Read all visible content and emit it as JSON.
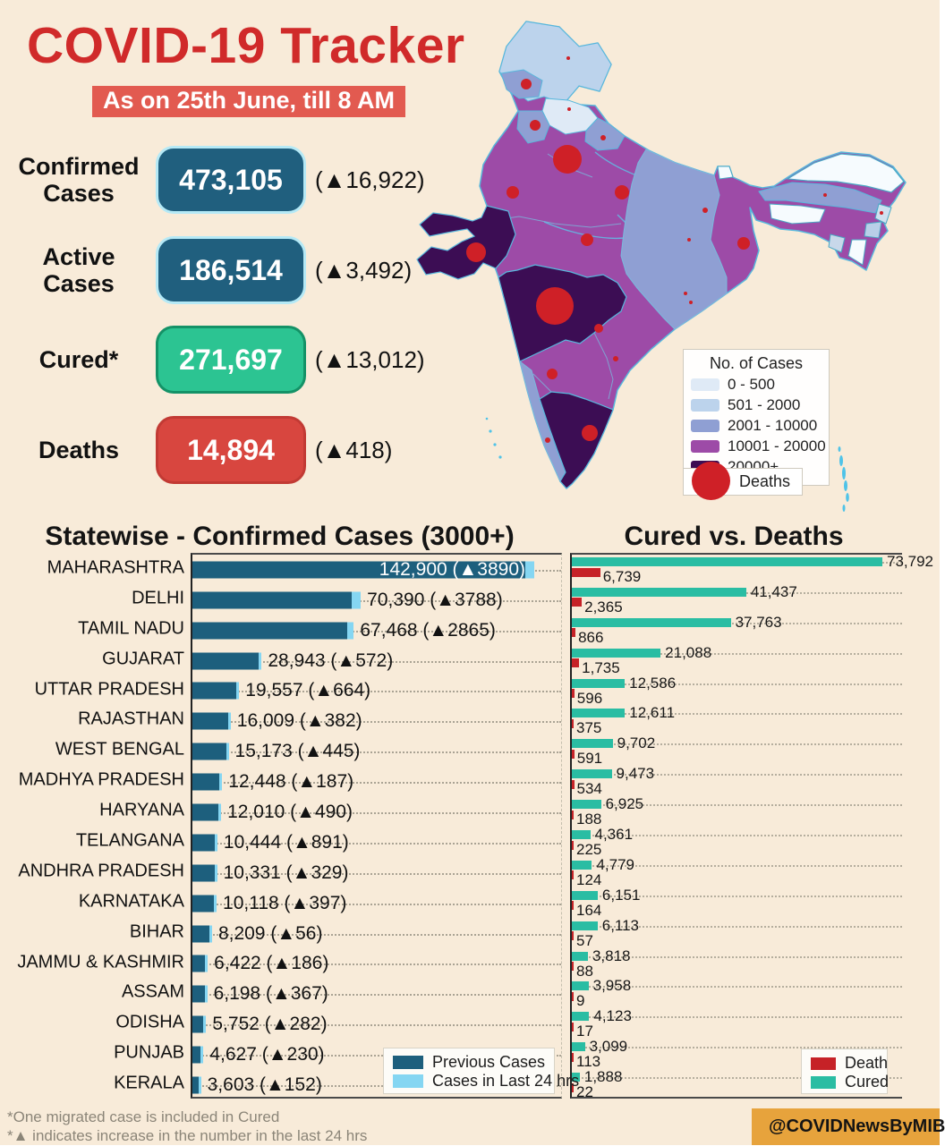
{
  "title": "COVID-19 Tracker",
  "date_badge": "As on 25th June, till 8 AM",
  "colors": {
    "background": "#f8ebd9",
    "title_red": "#d02a2a",
    "badge_bg": "#e25a50",
    "stat_teal": "#205f7e",
    "cured_green": "#2cc492",
    "death_red": "#d8463f",
    "bar_teal": "#1d5f7d",
    "bar_tip_blue": "#85d6f2",
    "cured_bar": "#2abda3",
    "death_bar": "#c62227",
    "twitter_bg": "#e7a33c",
    "twitter_blue": "#2da3e8"
  },
  "stats": [
    {
      "label": "Confirmed\nCases",
      "value": "473,105",
      "delta": "(▲16,922)",
      "fill": "#205f7e",
      "border": "#b5e9f6"
    },
    {
      "label": "Active\nCases",
      "value": "186,514",
      "delta": "(▲3,492)",
      "fill": "#205f7e",
      "border": "#b5e9f6"
    },
    {
      "label": "Cured*",
      "value": "271,697",
      "delta": "(▲13,012)",
      "fill": "#2cc492",
      "border": "#149267"
    },
    {
      "label": "Deaths",
      "value": "14,894",
      "delta": "(▲418)",
      "fill": "#d8463f",
      "border": "#c23a34"
    }
  ],
  "map": {
    "legend_title": "No. of Cases",
    "legend_items": [
      {
        "label": "0 - 500",
        "color": "#dfeaf6"
      },
      {
        "label": "501 - 2000",
        "color": "#bcd3ec"
      },
      {
        "label": "2001 - 10000",
        "color": "#8f9fd3"
      },
      {
        "label": "10001 - 20000",
        "color": "#9d4ba7"
      },
      {
        "label": "20000+",
        "color": "#3c0d54"
      }
    ],
    "deaths_label": "Deaths",
    "deaths_color": "#cf2027",
    "palette": {
      "p0": "#dfeaf6",
      "p1": "#bcd3ec",
      "p2": "#8f9fd3",
      "p3": "#9d4ba7",
      "p4": "#3c0d54",
      "white": "#f6fbfe",
      "manipur": "#b9cfe8",
      "nagaland": "#cfe0f0",
      "tripura": "#c8d8ea"
    },
    "death_markers": [
      {
        "x": 195,
        "y": 55,
        "r": 2
      },
      {
        "x": 148,
        "y": 84,
        "r": 6
      },
      {
        "x": 196,
        "y": 112,
        "r": 2
      },
      {
        "x": 158,
        "y": 130,
        "r": 6
      },
      {
        "x": 234,
        "y": 144,
        "r": 3
      },
      {
        "x": 194,
        "y": 168,
        "r": 16
      },
      {
        "x": 133,
        "y": 205,
        "r": 7
      },
      {
        "x": 255,
        "y": 205,
        "r": 8
      },
      {
        "x": 216,
        "y": 258,
        "r": 7
      },
      {
        "x": 92,
        "y": 272,
        "r": 11
      },
      {
        "x": 180,
        "y": 332,
        "r": 21
      },
      {
        "x": 348,
        "y": 225,
        "r": 3
      },
      {
        "x": 330,
        "y": 258,
        "r": 2
      },
      {
        "x": 326,
        "y": 318,
        "r": 2
      },
      {
        "x": 391,
        "y": 262,
        "r": 7
      },
      {
        "x": 332,
        "y": 328,
        "r": 2
      },
      {
        "x": 229,
        "y": 357,
        "r": 5
      },
      {
        "x": 248,
        "y": 391,
        "r": 3
      },
      {
        "x": 177,
        "y": 408,
        "r": 6
      },
      {
        "x": 172,
        "y": 482,
        "r": 3
      },
      {
        "x": 219,
        "y": 474,
        "r": 9
      },
      {
        "x": 482,
        "y": 208,
        "r": 2
      },
      {
        "x": 545,
        "y": 228,
        "r": 2
      }
    ]
  },
  "sections": {
    "left_title": "Statewise - Confirmed Cases (3000+)",
    "right_title": "Cured vs. Deaths"
  },
  "chart_data": [
    {
      "type": "bar",
      "orientation": "horizontal",
      "title": "Statewise - Confirmed Cases (3000+)",
      "legend_position": "bottom-right",
      "grid": "dotted",
      "xmax": 142900,
      "categories": [
        "MAHARASHTRA",
        "DELHI",
        "TAMIL NADU",
        "GUJARAT",
        "UTTAR PRADESH",
        "RAJASTHAN",
        "WEST BENGAL",
        "MADHYA PRADESH",
        "HARYANA",
        "TELANGANA",
        "ANDHRA PRADESH",
        "KARNATAKA",
        "BIHAR",
        "JAMMU & KASHMIR",
        "ASSAM",
        "ODISHA",
        "PUNJAB",
        "KERALA"
      ],
      "totals": [
        142900,
        70390,
        67468,
        28943,
        19557,
        16009,
        15173,
        12448,
        12010,
        10444,
        10331,
        10118,
        8209,
        6422,
        6198,
        5752,
        4627,
        3603
      ],
      "new_cases": [
        3890,
        3788,
        2865,
        572,
        664,
        382,
        445,
        187,
        490,
        891,
        329,
        397,
        56,
        186,
        367,
        282,
        230,
        152
      ],
      "labels": [
        "142,900 (▲3890)",
        "70,390 (▲3788)",
        "67,468 (▲2865)",
        "28,943 (▲572)",
        "19,557 (▲664)",
        "16,009 (▲382)",
        "15,173 (▲445)",
        "12,448 (▲187)",
        "12,010 (▲490)",
        "10,444 (▲891)",
        "10,331 (▲329)",
        "10,118 (▲397)",
        "8,209 (▲56)",
        "6,422 (▲186)",
        "6,198 (▲367)",
        "5,752 (▲282)",
        "4,627 (▲230)",
        "3,603 (▲152)"
      ],
      "series": [
        {
          "name": "Previous Cases",
          "color": "#1d5f7d"
        },
        {
          "name": "Cases in Last 24 hrs",
          "color": "#85d6f2"
        }
      ]
    },
    {
      "type": "bar",
      "orientation": "horizontal",
      "title": "Cured vs. Deaths",
      "legend_position": "bottom-right",
      "grid": "dotted",
      "xmax": 73792,
      "categories": [
        "MAHARASHTRA",
        "DELHI",
        "TAMIL NADU",
        "GUJARAT",
        "UTTAR PRADESH",
        "RAJASTHAN",
        "WEST BENGAL",
        "MADHYA PRADESH",
        "HARYANA",
        "TELANGANA",
        "ANDHRA PRADESH",
        "KARNATAKA",
        "BIHAR",
        "JAMMU & KASHMIR",
        "ASSAM",
        "ODISHA",
        "PUNJAB",
        "KERALA"
      ],
      "series": [
        {
          "name": "Cured",
          "color": "#2abda3",
          "values": [
            73792,
            41437,
            37763,
            21088,
            12586,
            12611,
            9702,
            9473,
            6925,
            4361,
            4779,
            6151,
            6113,
            3818,
            3958,
            4123,
            3099,
            1888
          ],
          "labels": [
            "73,792",
            "41,437",
            "37,763",
            "21,088",
            "12,586",
            "12,611",
            "9,702",
            "9,473",
            "6,925",
            "4,361",
            "4,779",
            "6,151",
            "6,113",
            "3,818",
            "3,958",
            "4,123",
            "3,099",
            "1,888"
          ]
        },
        {
          "name": "Death",
          "color": "#c62227",
          "values": [
            6739,
            2365,
            866,
            1735,
            596,
            375,
            591,
            534,
            188,
            225,
            124,
            164,
            57,
            88,
            9,
            17,
            113,
            22
          ],
          "labels": [
            "6,739",
            "2,365",
            "866",
            "1,735",
            "596",
            "375",
            "591",
            "534",
            "188",
            "225",
            "124",
            "164",
            "57",
            "88",
            "9",
            "17",
            "113",
            "22"
          ]
        }
      ]
    }
  ],
  "left_legend": [
    {
      "label": "Previous Cases",
      "color": "#1d5f7d"
    },
    {
      "label": "Cases in Last 24 hrs",
      "color": "#85d6f2"
    }
  ],
  "right_legend": [
    {
      "label": "Death",
      "color": "#c62227"
    },
    {
      "label": "Cured",
      "color": "#2abda3"
    }
  ],
  "footnotes": [
    "*One migrated case is included in Cured",
    "*▲ indicates increase in the number in the last 24 hrs"
  ],
  "twitter_handle": "@COVIDNewsByMIB"
}
